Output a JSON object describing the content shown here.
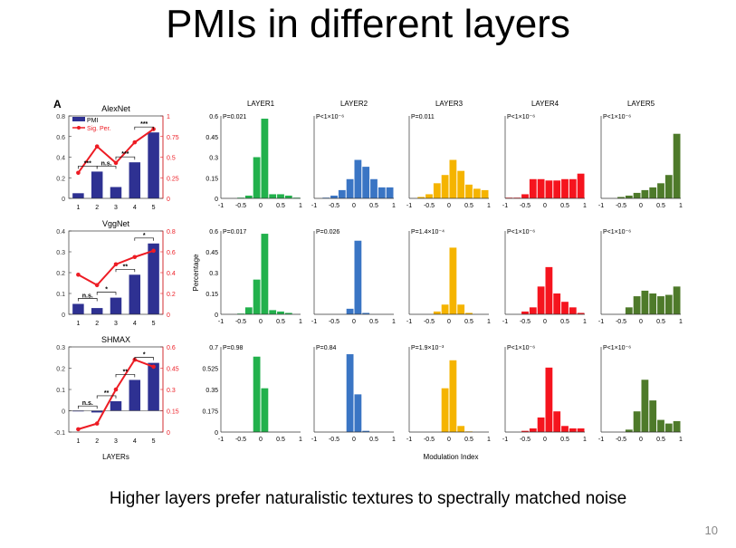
{
  "slide": {
    "title": "PMIs in different layers",
    "caption": "Higher layers prefer naturalistic textures to spectrally matched noise",
    "page_number": "10",
    "panel_letter": "A"
  },
  "colors": {
    "bar": "#2e3192",
    "line": "#ed1c24",
    "layers": [
      "#22b14c",
      "#3a75c4",
      "#f5b400",
      "#f5141e",
      "#4e7a2a"
    ]
  },
  "chart_data": [
    {
      "type": "bar",
      "title": "AlexNet",
      "categories": [
        "1",
        "2",
        "3",
        "4",
        "5"
      ],
      "values": [
        0.05,
        0.26,
        0.11,
        0.35,
        0.64
      ],
      "line": {
        "name": "Sig. Per.",
        "values": [
          0.31,
          0.63,
          0.43,
          0.68,
          0.84
        ]
      },
      "legend": [
        "PMI",
        "Sig. Per."
      ],
      "ylim": [
        0,
        0.8
      ],
      "yticks": [
        "0",
        "0.2",
        "0.4",
        "0.6",
        "0.8"
      ],
      "y2lim": [
        0,
        1
      ],
      "y2ticks": [
        "0",
        "0.25",
        "0.5",
        "0.75",
        "1"
      ],
      "brackets": [
        {
          "from": 1,
          "to": 2,
          "label": "***"
        },
        {
          "from": 2,
          "to": 3,
          "label": "n.s."
        },
        {
          "from": 3,
          "to": 4,
          "label": "***"
        },
        {
          "from": 4,
          "to": 5,
          "label": "***"
        }
      ]
    },
    {
      "type": "bar",
      "title": "VggNet",
      "categories": [
        "1",
        "2",
        "3",
        "4",
        "5"
      ],
      "values": [
        0.05,
        0.03,
        0.08,
        0.19,
        0.34
      ],
      "line": {
        "values": [
          0.38,
          0.28,
          0.48,
          0.55,
          0.61
        ]
      },
      "ylim": [
        0,
        0.4
      ],
      "yticks": [
        "0",
        "0.1",
        "0.2",
        "0.3",
        "0.4"
      ],
      "y2lim": [
        0,
        0.8
      ],
      "y2ticks": [
        "0",
        "0.2",
        "0.4",
        "0.6",
        "0.8"
      ],
      "brackets": [
        {
          "from": 1,
          "to": 2,
          "label": "n.s."
        },
        {
          "from": 2,
          "to": 3,
          "label": "*"
        },
        {
          "from": 3,
          "to": 4,
          "label": "**"
        },
        {
          "from": 4,
          "to": 5,
          "label": "*"
        }
      ]
    },
    {
      "type": "bar",
      "title": "SHMAX",
      "xlabel": "LAYERs",
      "categories": [
        "1",
        "2",
        "3",
        "4",
        "5"
      ],
      "values": [
        -0.003,
        -0.008,
        0.045,
        0.145,
        0.225
      ],
      "line": {
        "values": [
          0.02,
          0.06,
          0.3,
          0.51,
          0.46
        ]
      },
      "ylim": [
        -0.1,
        0.3
      ],
      "yticks": [
        "-0.1",
        "0",
        "0.1",
        "0.2",
        "0.3"
      ],
      "y2lim": [
        0,
        0.6
      ],
      "y2ticks": [
        "0",
        "0.15",
        "0.3",
        "0.45",
        "0.6"
      ],
      "brackets": [
        {
          "from": 1,
          "to": 2,
          "label": "n.s."
        },
        {
          "from": 2,
          "to": 3,
          "label": "**"
        },
        {
          "from": 3,
          "to": 4,
          "label": "**"
        },
        {
          "from": 4,
          "to": 5,
          "label": "*"
        }
      ]
    },
    {
      "type": "bar",
      "subtype": "histogram-grid",
      "column_titles": [
        "LAYER1",
        "LAYER2",
        "LAYER3",
        "LAYER4",
        "LAYER5"
      ],
      "xlabel": "Modulation Index",
      "ylabel": "Percentage",
      "x_bin_edges": [
        -1,
        -0.8,
        -0.6,
        -0.4,
        -0.2,
        0,
        0.2,
        0.4,
        0.6,
        0.8,
        1
      ],
      "xticks": [
        "-1",
        "-0.5",
        "0",
        "0.5",
        "1"
      ],
      "rows": [
        {
          "ylim": [
            0,
            0.6
          ],
          "yticks": [
            "0",
            "0.15",
            "0.3",
            "0.45",
            "0.6"
          ],
          "panels": [
            {
              "p": "P=0.021",
              "values": [
                0,
                0,
                0.005,
                0.02,
                0.3,
                0.58,
                0.03,
                0.03,
                0.02,
                0.005
              ]
            },
            {
              "p": "P<1×10⁻⁶",
              "values": [
                0,
                0.005,
                0.02,
                0.06,
                0.14,
                0.28,
                0.23,
                0.14,
                0.08,
                0.08
              ]
            },
            {
              "p": "P=0.011",
              "values": [
                0,
                0.01,
                0.03,
                0.11,
                0.17,
                0.28,
                0.2,
                0.1,
                0.07,
                0.06
              ]
            },
            {
              "p": "P<1×10⁻⁶",
              "values": [
                0.005,
                0.005,
                0.03,
                0.14,
                0.14,
                0.13,
                0.13,
                0.14,
                0.14,
                0.18
              ]
            },
            {
              "p": "P<1×10⁻⁶",
              "values": [
                0,
                0,
                0.01,
                0.02,
                0.04,
                0.06,
                0.08,
                0.11,
                0.17,
                0.47
              ]
            }
          ]
        },
        {
          "ylim": [
            0,
            0.6
          ],
          "yticks": [
            "0",
            "0.15",
            "0.3",
            "0.45",
            "0.6"
          ],
          "panels": [
            {
              "p": "P=0.017",
              "values": [
                0,
                0,
                0.005,
                0.05,
                0.25,
                0.58,
                0.03,
                0.02,
                0.01,
                0
              ]
            },
            {
              "p": "P=0.026",
              "values": [
                0,
                0,
                0,
                0,
                0.04,
                0.53,
                0.01,
                0,
                0,
                0
              ]
            },
            {
              "p": "P=1.4×10⁻⁴",
              "values": [
                0,
                0,
                0,
                0.02,
                0.07,
                0.48,
                0.07,
                0.01,
                0,
                0
              ]
            },
            {
              "p": "P<1×10⁻⁶",
              "values": [
                0,
                0,
                0.02,
                0.05,
                0.2,
                0.34,
                0.15,
                0.09,
                0.05,
                0.01
              ]
            },
            {
              "p": "P<1×10⁻⁶",
              "values": [
                0,
                0,
                0,
                0.05,
                0.13,
                0.17,
                0.15,
                0.13,
                0.14,
                0.2
              ]
            }
          ]
        },
        {
          "ylim": [
            0,
            0.7
          ],
          "yticks": [
            "0",
            "0.175",
            "0.35",
            "0.525",
            "0.7"
          ],
          "panels": [
            {
              "p": "P=0.98",
              "values": [
                0,
                0,
                0,
                0,
                0.62,
                0.36,
                0,
                0,
                0,
                0
              ]
            },
            {
              "p": "P=0.84",
              "values": [
                0,
                0,
                0,
                0,
                0.64,
                0.31,
                0.01,
                0,
                0,
                0
              ]
            },
            {
              "p": "P=1.9×10⁻³",
              "values": [
                0,
                0,
                0,
                0,
                0.36,
                0.59,
                0.05,
                0.005,
                0,
                0
              ]
            },
            {
              "p": "P<1×10⁻⁶",
              "values": [
                0,
                0,
                0.01,
                0.03,
                0.12,
                0.53,
                0.17,
                0.05,
                0.03,
                0.03
              ]
            },
            {
              "p": "P<1×10⁻⁶",
              "values": [
                0,
                0,
                0,
                0.02,
                0.17,
                0.43,
                0.26,
                0.1,
                0.07,
                0.09
              ]
            }
          ]
        }
      ]
    }
  ]
}
